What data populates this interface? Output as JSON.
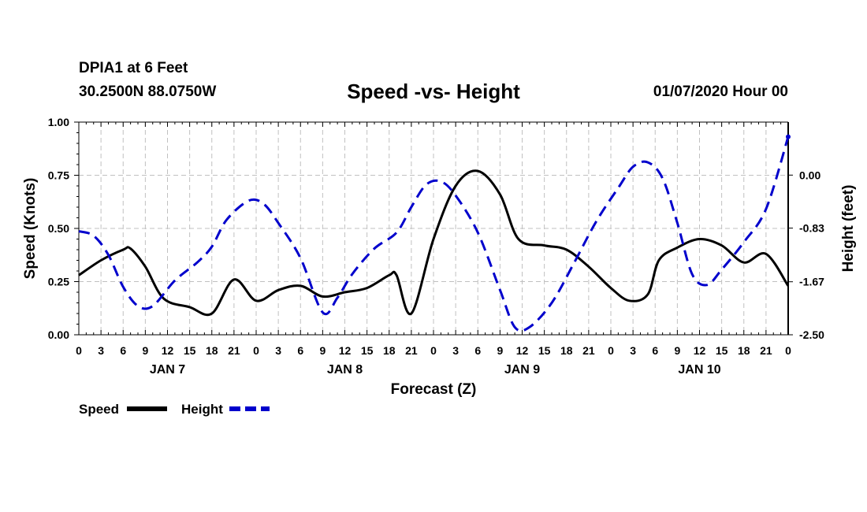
{
  "header": {
    "station": "DPIA1 at 6 Feet",
    "coords": "30.2500N 88.0750W",
    "title": "Speed -vs- Height",
    "datetime": "01/07/2020 Hour 00"
  },
  "chart_data": {
    "type": "line",
    "title": "Speed -vs- Height",
    "xlabel": "Forecast (Z)",
    "ylabel_left": "Speed (Knots)",
    "ylabel_right": "Height (feet)",
    "x_range_hours": [
      0,
      96
    ],
    "ylim_left": [
      0,
      1
    ],
    "ylim_right": [
      -2.5,
      0.83
    ],
    "left_ticks": [
      "0.00",
      "0.25",
      "0.50",
      "0.75",
      "1.00"
    ],
    "right_ticks": [
      {
        "value": -2.5,
        "label": "-2.50"
      },
      {
        "value": -1.67,
        "label": "-1.67"
      },
      {
        "value": -0.83,
        "label": "-0.83"
      },
      {
        "value": 0.0,
        "label": "0.00"
      }
    ],
    "x_tick_labels": [
      "0",
      "3",
      "6",
      "9",
      "12",
      "15",
      "18",
      "21",
      "0",
      "3",
      "6",
      "9",
      "12",
      "15",
      "18",
      "21",
      "0",
      "3",
      "6",
      "9",
      "12",
      "15",
      "18",
      "21",
      "0",
      "3",
      "6",
      "9",
      "12",
      "15",
      "18",
      "21",
      "0"
    ],
    "day_labels": [
      {
        "label": "JAN 7",
        "hour": 12
      },
      {
        "label": "JAN 8",
        "hour": 36
      },
      {
        "label": "JAN 9",
        "hour": 60
      },
      {
        "label": "JAN 10",
        "hour": 84
      }
    ],
    "grid": true,
    "legend": "bottom-left",
    "legend_entries": [
      "Speed",
      "Height"
    ],
    "series": [
      {
        "name": "Speed",
        "axis": "left",
        "color": "#000000",
        "dash": "solid",
        "points": [
          [
            0,
            0.28
          ],
          [
            3,
            0.35
          ],
          [
            6,
            0.4
          ],
          [
            7,
            0.405
          ],
          [
            9,
            0.32
          ],
          [
            11.5,
            0.17
          ],
          [
            15,
            0.13
          ],
          [
            18,
            0.1
          ],
          [
            21,
            0.26
          ],
          [
            24,
            0.16
          ],
          [
            27,
            0.21
          ],
          [
            30,
            0.23
          ],
          [
            33,
            0.18
          ],
          [
            36,
            0.2
          ],
          [
            39,
            0.22
          ],
          [
            42,
            0.28
          ],
          [
            43,
            0.28
          ],
          [
            45,
            0.1
          ],
          [
            48,
            0.45
          ],
          [
            51,
            0.7
          ],
          [
            54,
            0.77
          ],
          [
            57,
            0.66
          ],
          [
            59.5,
            0.45
          ],
          [
            63,
            0.42
          ],
          [
            66,
            0.4
          ],
          [
            69,
            0.32
          ],
          [
            72,
            0.22
          ],
          [
            74.5,
            0.16
          ],
          [
            77,
            0.19
          ],
          [
            78.5,
            0.35
          ],
          [
            81,
            0.41
          ],
          [
            84,
            0.45
          ],
          [
            87,
            0.42
          ],
          [
            90,
            0.34
          ],
          [
            93,
            0.38
          ],
          [
            96,
            0.23
          ]
        ]
      },
      {
        "name": "Height",
        "axis": "right",
        "color": "#0000cc",
        "dash": "dashed",
        "points": [
          [
            0,
            -0.88
          ],
          [
            2,
            -0.95
          ],
          [
            4,
            -1.25
          ],
          [
            6,
            -1.75
          ],
          [
            8,
            -2.05
          ],
          [
            10,
            -2.05
          ],
          [
            13,
            -1.65
          ],
          [
            16,
            -1.37
          ],
          [
            18,
            -1.12
          ],
          [
            20,
            -0.7
          ],
          [
            23,
            -0.4
          ],
          [
            25,
            -0.45
          ],
          [
            27,
            -0.75
          ],
          [
            30,
            -1.3
          ],
          [
            33,
            -2.15
          ],
          [
            35,
            -1.92
          ],
          [
            37,
            -1.55
          ],
          [
            40,
            -1.15
          ],
          [
            43,
            -0.9
          ],
          [
            45,
            -0.5
          ],
          [
            47,
            -0.15
          ],
          [
            49,
            -0.1
          ],
          [
            51,
            -0.32
          ],
          [
            54,
            -0.9
          ],
          [
            57,
            -1.8
          ],
          [
            59,
            -2.38
          ],
          [
            61,
            -2.38
          ],
          [
            64,
            -2.0
          ],
          [
            67,
            -1.38
          ],
          [
            70,
            -0.73
          ],
          [
            73,
            -0.2
          ],
          [
            75,
            0.13
          ],
          [
            77,
            0.2
          ],
          [
            79,
            -0.05
          ],
          [
            81,
            -0.75
          ],
          [
            83,
            -1.55
          ],
          [
            85,
            -1.72
          ],
          [
            87,
            -1.48
          ],
          [
            90,
            -1.05
          ],
          [
            93,
            -0.53
          ],
          [
            96,
            0.6
          ]
        ]
      }
    ]
  }
}
